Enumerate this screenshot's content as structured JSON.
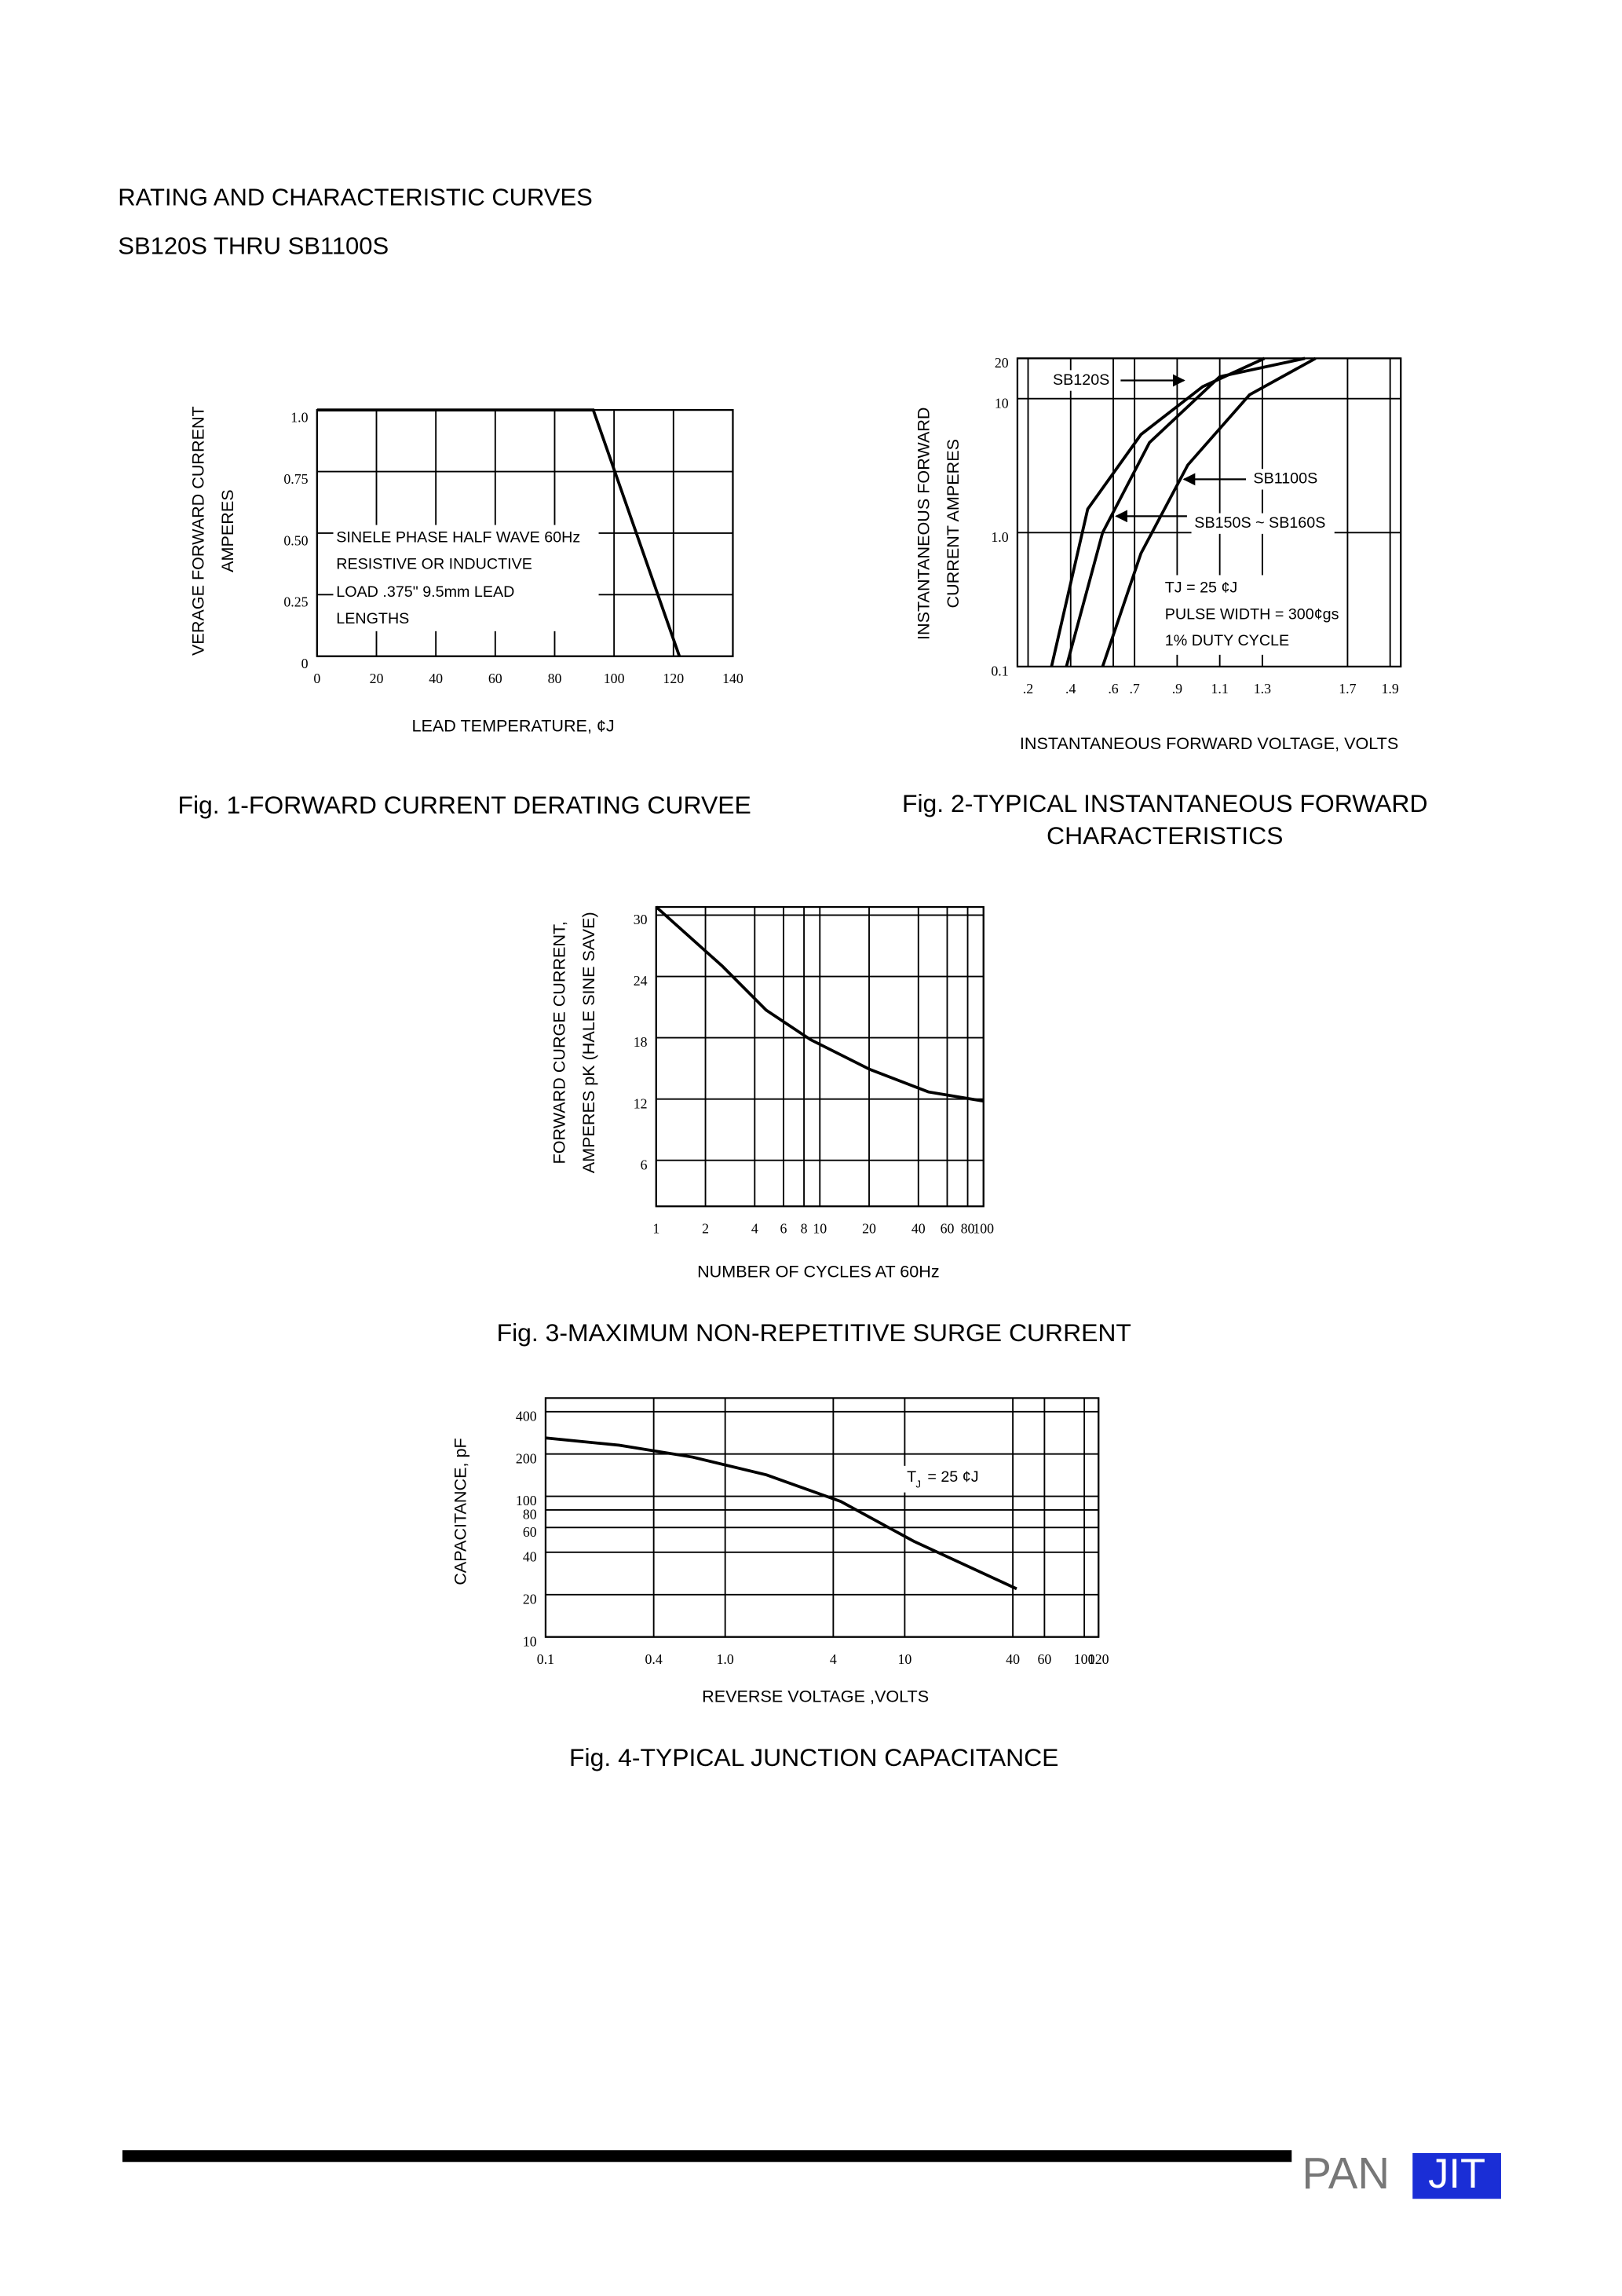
{
  "header": {
    "title": "RATING AND CHARACTERISTIC CURVES",
    "subtitle": "SB120S THRU SB1100S"
  },
  "footer": {
    "logo_left": "PAN",
    "logo_right": "JIT"
  },
  "chart_data": [
    {
      "type": "line",
      "caption": [
        "Fig. 1-FORWARD CURRENT DERATING CURVEE"
      ],
      "y_label": [
        "VERAGE FORWARD CURRENT",
        "AMPERES"
      ],
      "x_label": "LEAD TEMPERATURE, ¢J",
      "x": [
        0,
        93,
        122
      ],
      "values": [
        1,
        1,
        0
      ],
      "color": "#000000",
      "xlim": [
        0,
        140
      ],
      "ylim": [
        0,
        1
      ],
      "xticks": [
        0,
        20,
        40,
        60,
        80,
        100,
        120,
        140
      ],
      "yticks": [
        0,
        0.25,
        {
          "value": 0.5,
          "label": "0.50"
        },
        0.75,
        {
          "value": 1,
          "label": "1.0"
        }
      ],
      "grid": true,
      "x_log": false,
      "y_log": false,
      "annotations": [
        "SINELE PHASE HALF WAVE 60Hz",
        "RESISTIVE OR INDUCTIVE",
        "LOAD .375\" 9.5mm LEAD",
        "LENGTHS"
      ]
    },
    {
      "type": "line",
      "caption": [
        "Fig. 2-TYPICAL INSTANTANEOUS FORWARD",
        "CHARACTERISTICS"
      ],
      "y_label": [
        "INSTANTANEOUS FORWARD",
        "CURRENT AMPERES"
      ],
      "x_label": "INSTANTANEOUS FORWARD VOLTAGE, VOLTS",
      "series": [
        {
          "name": "SB120S",
          "color": "#000000",
          "x": [
            0.31,
            0.48,
            0.73,
            1.02,
            1.31
          ],
          "values": [
            0.1,
            1.5,
            5.4,
            12.3,
            20
          ]
        },
        {
          "name": "SB1100S",
          "color": "#000000",
          "x": [
            0.55,
            0.73,
            0.95,
            1.24,
            1.55
          ],
          "values": [
            0.1,
            0.7,
            3.2,
            10.7,
            20
          ]
        },
        {
          "name": "SB150S ~ SB160S",
          "color": "#000000",
          "x": [
            0.38,
            0.55,
            0.77,
            1.1,
            1.5
          ],
          "values": [
            0.1,
            1,
            4.7,
            14.6,
            20
          ]
        }
      ],
      "xlim": [
        0.15,
        1.95
      ],
      "ylim": [
        0.1,
        20
      ],
      "xticks": [
        {
          "value": 0.2,
          "label": ".2"
        },
        {
          "value": 0.4,
          "label": ".4"
        },
        {
          "value": 0.6,
          "label": ".6"
        },
        {
          "value": 0.7,
          "label": ".7"
        },
        {
          "value": 0.9,
          "label": ".9"
        },
        1.1,
        1.3,
        1.7,
        1.9
      ],
      "yticks": [
        0.1,
        {
          "value": 1,
          "label": "1.0"
        },
        10,
        20
      ],
      "grid": true,
      "x_log": false,
      "y_log": true,
      "annotations": [
        "TJ = 25 ¢J",
        "PULSE WIDTH = 300¢gs",
        "1% DUTY CYCLE"
      ]
    },
    {
      "type": "line",
      "caption": [
        "Fig. 3-MAXIMUM NON-REPETITIVE SURGE CURRENT"
      ],
      "y_label": [
        "FORWARD CURGE CURRENT,",
        "AMPERES pK (HALE SINE SAVE)"
      ],
      "x_label": "NUMBER OF CYCLES AT 60Hz",
      "x": [
        1,
        2.54,
        4.7,
        8.8,
        20.2,
        46,
        100
      ],
      "values": [
        30.8,
        25,
        20.7,
        17.8,
        14.9,
        12.7,
        11.8
      ],
      "color": "#000000",
      "xlim": [
        1,
        100
      ],
      "ylim": [
        1.5,
        30.8
      ],
      "xticks": [
        1,
        2,
        4,
        6,
        8,
        10,
        20,
        40,
        60,
        80,
        100
      ],
      "yticks": [
        6,
        12,
        18,
        24,
        30
      ],
      "grid": true,
      "x_log": true,
      "y_log": false,
      "annotations": []
    },
    {
      "type": "line",
      "caption": [
        "Fig. 4-TYPICAL JUNCTION CAPACITANCE"
      ],
      "y_label": [
        "CAPACITANCE, pF"
      ],
      "x_label": "REVERSE VOLTAGE ,VOLTS",
      "x": [
        0.1,
        0.257,
        0.66,
        1.7,
        4.4,
        11.2,
        42
      ],
      "values": [
        260,
        231,
        190,
        142,
        92,
        48,
        22
      ],
      "color": "#000000",
      "xlim": [
        0.1,
        120
      ],
      "ylim": [
        10,
        500
      ],
      "xticks": [
        0.1,
        0.4,
        {
          "value": 1,
          "label": "1.0"
        },
        4,
        10,
        40,
        60,
        100,
        120
      ],
      "yticks": [
        10,
        20,
        40,
        60,
        80,
        100,
        200,
        400
      ],
      "grid": true,
      "x_log": true,
      "y_log": true,
      "annotations": [
        "T",
        "J",
        "= 25 ¢J"
      ]
    }
  ]
}
